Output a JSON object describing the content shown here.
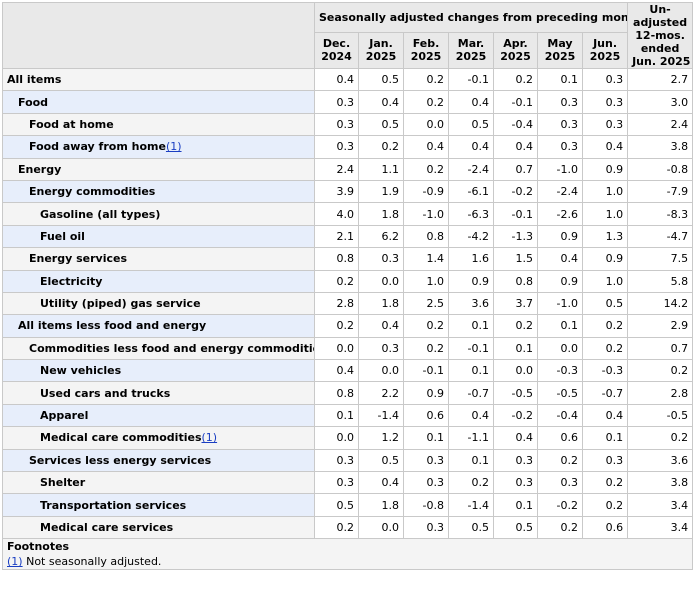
{
  "header": {
    "group_label": "Seasonally adjusted changes from preceding month",
    "months": [
      {
        "month": "Dec.",
        "year": "2024"
      },
      {
        "month": "Jan.",
        "year": "2025"
      },
      {
        "month": "Feb.",
        "year": "2025"
      },
      {
        "month": "Mar.",
        "year": "2025"
      },
      {
        "month": "Apr.",
        "year": "2025"
      },
      {
        "month": "May",
        "year": "2025"
      },
      {
        "month": "Jun.",
        "year": "2025"
      }
    ],
    "unadjusted": [
      "Un-",
      "adjusted",
      "12-mos.",
      "ended",
      "Jun. 2025"
    ]
  },
  "rows": [
    {
      "label": "All items",
      "indent": 0,
      "values": [
        "0.4",
        "0.5",
        "0.2",
        "-0.1",
        "0.2",
        "0.1",
        "0.3",
        "2.7"
      ]
    },
    {
      "label": "Food",
      "indent": 1,
      "values": [
        "0.3",
        "0.4",
        "0.2",
        "0.4",
        "-0.1",
        "0.3",
        "0.3",
        "3.0"
      ]
    },
    {
      "label": "Food at home",
      "indent": 2,
      "values": [
        "0.3",
        "0.5",
        "0.0",
        "0.5",
        "-0.4",
        "0.3",
        "0.3",
        "2.4"
      ]
    },
    {
      "label": "Food away from home",
      "indent": 2,
      "footnote": "(1)",
      "values": [
        "0.3",
        "0.2",
        "0.4",
        "0.4",
        "0.4",
        "0.3",
        "0.4",
        "3.8"
      ]
    },
    {
      "label": "Energy",
      "indent": 1,
      "values": [
        "2.4",
        "1.1",
        "0.2",
        "-2.4",
        "0.7",
        "-1.0",
        "0.9",
        "-0.8"
      ]
    },
    {
      "label": "Energy commodities",
      "indent": 2,
      "values": [
        "3.9",
        "1.9",
        "-0.9",
        "-6.1",
        "-0.2",
        "-2.4",
        "1.0",
        "-7.9"
      ]
    },
    {
      "label": "Gasoline (all types)",
      "indent": 3,
      "values": [
        "4.0",
        "1.8",
        "-1.0",
        "-6.3",
        "-0.1",
        "-2.6",
        "1.0",
        "-8.3"
      ]
    },
    {
      "label": "Fuel oil",
      "indent": 3,
      "values": [
        "2.1",
        "6.2",
        "0.8",
        "-4.2",
        "-1.3",
        "0.9",
        "1.3",
        "-4.7"
      ]
    },
    {
      "label": "Energy services",
      "indent": 2,
      "values": [
        "0.8",
        "0.3",
        "1.4",
        "1.6",
        "1.5",
        "0.4",
        "0.9",
        "7.5"
      ]
    },
    {
      "label": "Electricity",
      "indent": 3,
      "values": [
        "0.2",
        "0.0",
        "1.0",
        "0.9",
        "0.8",
        "0.9",
        "1.0",
        "5.8"
      ]
    },
    {
      "label": "Utility (piped) gas service",
      "indent": 3,
      "values": [
        "2.8",
        "1.8",
        "2.5",
        "3.6",
        "3.7",
        "-1.0",
        "0.5",
        "14.2"
      ]
    },
    {
      "label": "All items less food and energy",
      "indent": 1,
      "values": [
        "0.2",
        "0.4",
        "0.2",
        "0.1",
        "0.2",
        "0.1",
        "0.2",
        "2.9"
      ]
    },
    {
      "label": "Commodities less food and energy commodities",
      "indent": 2,
      "values": [
        "0.0",
        "0.3",
        "0.2",
        "-0.1",
        "0.1",
        "0.0",
        "0.2",
        "0.7"
      ]
    },
    {
      "label": "New vehicles",
      "indent": 3,
      "values": [
        "0.4",
        "0.0",
        "-0.1",
        "0.1",
        "0.0",
        "-0.3",
        "-0.3",
        "0.2"
      ]
    },
    {
      "label": "Used cars and trucks",
      "indent": 3,
      "values": [
        "0.8",
        "2.2",
        "0.9",
        "-0.7",
        "-0.5",
        "-0.5",
        "-0.7",
        "2.8"
      ]
    },
    {
      "label": "Apparel",
      "indent": 3,
      "values": [
        "0.1",
        "-1.4",
        "0.6",
        "0.4",
        "-0.2",
        "-0.4",
        "0.4",
        "-0.5"
      ]
    },
    {
      "label": "Medical care commodities",
      "indent": 3,
      "footnote": "(1)",
      "values": [
        "0.0",
        "1.2",
        "0.1",
        "-1.1",
        "0.4",
        "0.6",
        "0.1",
        "0.2"
      ]
    },
    {
      "label": "Services less energy services",
      "indent": 2,
      "values": [
        "0.3",
        "0.5",
        "0.3",
        "0.1",
        "0.3",
        "0.2",
        "0.3",
        "3.6"
      ]
    },
    {
      "label": "Shelter",
      "indent": 3,
      "values": [
        "0.3",
        "0.4",
        "0.3",
        "0.2",
        "0.3",
        "0.3",
        "0.2",
        "3.8"
      ]
    },
    {
      "label": "Transportation services",
      "indent": 3,
      "values": [
        "0.5",
        "1.8",
        "-0.8",
        "-1.4",
        "0.1",
        "-0.2",
        "0.2",
        "3.4"
      ]
    },
    {
      "label": "Medical care services",
      "indent": 3,
      "values": [
        "0.2",
        "0.0",
        "0.3",
        "0.5",
        "0.5",
        "0.2",
        "0.6",
        "3.4"
      ]
    }
  ],
  "footnotes": {
    "title": "Footnotes",
    "items": [
      {
        "marker": "(1)",
        "text": " Not seasonally adjusted."
      }
    ]
  }
}
